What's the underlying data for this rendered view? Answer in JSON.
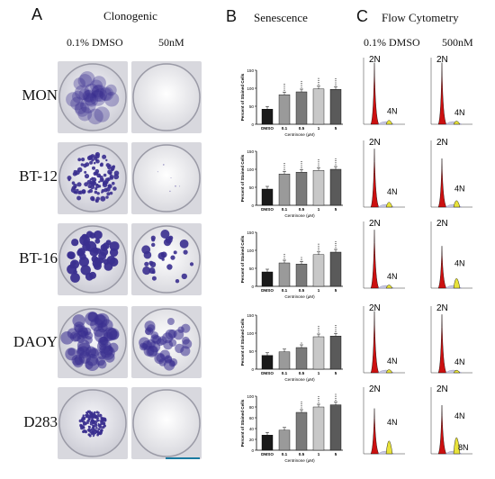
{
  "panels": {
    "A": {
      "letter": "A",
      "title": "Clonogenic",
      "col1": "0.1% DMSO",
      "col2": "50nM"
    },
    "B": {
      "letter": "B",
      "title": "Senescence"
    },
    "C": {
      "letter": "C",
      "title": "Flow Cytometry",
      "col1": "0.1% DMSO",
      "col2": "500nM"
    }
  },
  "cell_lines": [
    "MON",
    "BT-12",
    "BT-16",
    "DAOY",
    "D283"
  ],
  "flow_labels": {
    "n2": "2N",
    "n4": "4N",
    "n8": "8N"
  },
  "colors": {
    "red_peak": "#cc1010",
    "yellow_peak": "#e8e23a",
    "colony": "#3a2f8f"
  },
  "chart_data": [
    {
      "type": "bar",
      "cell_line": "MON",
      "categories": [
        "DMSO",
        "0.1",
        "0.5",
        "1",
        "5"
      ],
      "values": [
        42,
        82,
        90,
        98,
        97
      ],
      "ylabel": "Percent of Stained Cells",
      "xlabel": "Centrinone (μM)",
      "ylim": [
        0,
        150
      ],
      "yticks": [
        "0",
        "50",
        "100",
        "150"
      ],
      "sig": [
        "",
        "****",
        "****",
        "****",
        "****"
      ]
    },
    {
      "type": "bar",
      "cell_line": "BT-12",
      "categories": [
        "DMSO",
        "0.1",
        "0.5",
        "1",
        "5"
      ],
      "values": [
        45,
        87,
        92,
        97,
        100
      ],
      "ylabel": "Percent of Stained Cells",
      "xlabel": "Centrinone (μM)",
      "ylim": [
        0,
        150
      ],
      "yticks": [
        "0",
        "50",
        "100",
        "150"
      ],
      "sig": [
        "",
        "****",
        "****",
        "****",
        "****"
      ]
    },
    {
      "type": "bar",
      "cell_line": "BT-16",
      "categories": [
        "DMSO",
        "0.1",
        "0.5",
        "1",
        "5"
      ],
      "values": [
        40,
        65,
        62,
        88,
        95
      ],
      "ylabel": "Percent of Stained Cells",
      "xlabel": "Centrinone (μM)",
      "ylim": [
        0,
        150
      ],
      "yticks": [
        "0",
        "50",
        "100",
        "150"
      ],
      "sig": [
        "",
        "***",
        "**",
        "****",
        "****"
      ]
    },
    {
      "type": "bar",
      "cell_line": "DAOY",
      "categories": [
        "DMSO",
        "0.1",
        "0.5",
        "1",
        "5"
      ],
      "values": [
        38,
        48,
        60,
        90,
        92
      ],
      "ylabel": "Percent of Stained Cells",
      "xlabel": "Centrinone (μM)",
      "ylim": [
        0,
        150
      ],
      "yticks": [
        "0",
        "50",
        "100",
        "150"
      ],
      "sig": [
        "",
        "",
        "*",
        "****",
        "****"
      ]
    },
    {
      "type": "bar",
      "cell_line": "D283",
      "categories": [
        "DMSO",
        "0.1",
        "0.5",
        "1",
        "5"
      ],
      "values": [
        28,
        37,
        70,
        80,
        84
      ],
      "ylabel": "Percent of Stained Cells",
      "xlabel": "Centrinone (μM)",
      "ylim": [
        0,
        100
      ],
      "yticks": [
        "0",
        "20",
        "40",
        "60",
        "80",
        "100"
      ],
      "sig": [
        "",
        "",
        "****",
        "****",
        "****"
      ]
    }
  ]
}
